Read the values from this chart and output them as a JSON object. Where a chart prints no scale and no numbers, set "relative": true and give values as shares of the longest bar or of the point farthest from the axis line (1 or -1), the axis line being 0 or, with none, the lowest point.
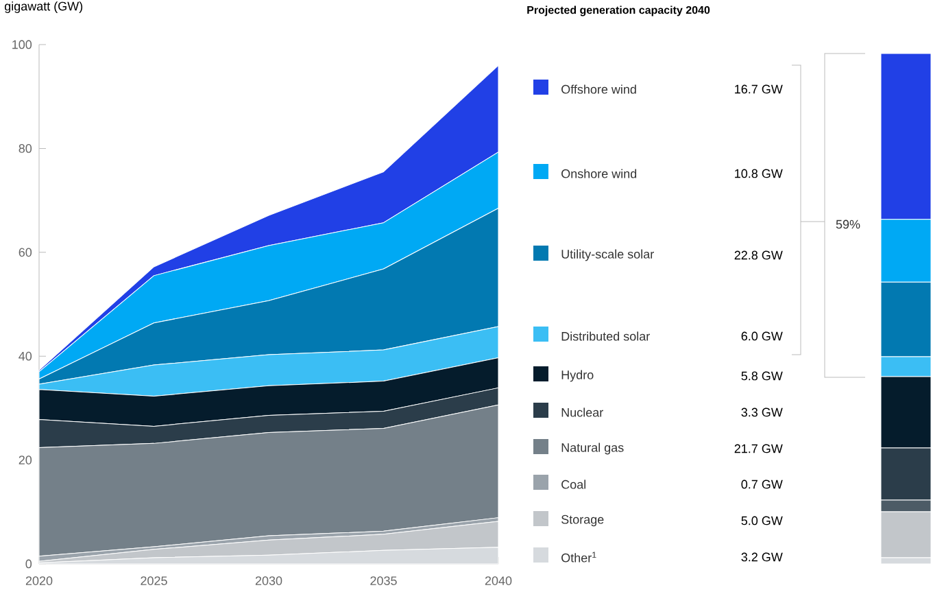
{
  "chart_data": [
    {
      "type": "area",
      "stacked": true,
      "ylabel": "gigawatt (GW)",
      "legend_title": "Projected generation capacity 2040",
      "legend": "right",
      "x": [
        2020,
        2025,
        2030,
        2035,
        2040
      ],
      "xlim": [
        2020,
        2040
      ],
      "xticks": [
        2020,
        2025,
        2030,
        2035,
        2040
      ],
      "ylim": [
        0,
        100
      ],
      "yticks": [
        0,
        20,
        40,
        60,
        80,
        100
      ],
      "annotations": [
        "16.7 GW",
        "10.8 GW",
        "22.8 GW",
        "6.0 GW",
        "5.8 GW",
        "3.3  GW",
        "21.7 GW",
        "0.7 GW",
        "5.0 GW",
        "3.2 GW"
      ],
      "series": [
        {
          "name": "Other$^{1}$",
          "color": "#d6dade",
          "values": [
            0.2,
            1.2,
            1.7,
            2.6,
            3.2
          ]
        },
        {
          "name": "Storage",
          "color": "#c2c6ca",
          "values": [
            0.3,
            1.6,
            2.9,
            3.1,
            5.0
          ]
        },
        {
          "name": "Coal",
          "color": "#9aa3ab",
          "values": [
            1.0,
            0.5,
            0.8,
            0.6,
            0.7
          ]
        },
        {
          "name": "Natural gas",
          "color": "#748089",
          "values": [
            20.9,
            19.9,
            19.9,
            19.8,
            21.7
          ]
        },
        {
          "name": "Nuclear",
          "color": "#2b3d4a",
          "values": [
            5.4,
            3.3,
            3.3,
            3.3,
            3.3
          ]
        },
        {
          "name": "Hydro",
          "color": "#051c2c",
          "values": [
            5.8,
            5.8,
            5.7,
            5.8,
            5.8
          ]
        },
        {
          "name": "Distributed solar",
          "color": "#3bbef4",
          "values": [
            1.0,
            6.0,
            6.0,
            6.0,
            6.0
          ]
        },
        {
          "name": "Utility-scale solar",
          "color": "#0279b1",
          "values": [
            1.0,
            8.1,
            10.4,
            15.6,
            22.8
          ]
        },
        {
          "name": "Onshore wind",
          "color": "#00a9f4",
          "values": [
            1.4,
            9.1,
            10.6,
            8.9,
            10.8
          ]
        },
        {
          "name": "Offshore wind",
          "color": "#2140e6",
          "values": [
            0.3,
            1.7,
            5.8,
            9.8,
            16.7
          ]
        }
      ]
    },
    {
      "type": "bar",
      "stacked": true,
      "relative": true,
      "categories": [
        null
      ],
      "annotations": [
        "59%"
      ],
      "series": [
        {
          "color": "#d6dade",
          "values": [
            0.012
          ]
        },
        {
          "color": "#c2c6ca",
          "values": [
            0.09
          ]
        },
        {
          "color": "#4c5b66",
          "values": [
            0.023
          ]
        },
        {
          "color": "#2b3d4a",
          "values": [
            0.102
          ]
        },
        {
          "color": "#051c2c",
          "values": [
            0.14
          ]
        },
        {
          "color": "#3bbef4",
          "values": [
            0.039
          ]
        },
        {
          "color": "#0279b1",
          "values": [
            0.146
          ]
        },
        {
          "color": "#00a9f4",
          "values": [
            0.123
          ]
        },
        {
          "color": "#2140e6",
          "values": [
            0.325
          ]
        }
      ]
    }
  ]
}
